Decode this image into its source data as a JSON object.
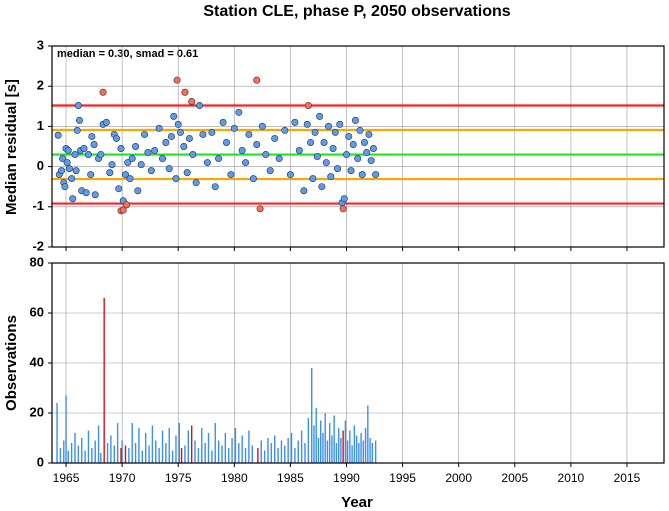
{
  "chart_data": [
    {
      "type": "scatter",
      "title": "Station CLE, phase P, 2050 observations",
      "annotation": "median = 0.30, smad = 0.61",
      "ylabel": "Median residual [s]",
      "xlim": [
        1963.75,
        2018.3
      ],
      "xticks": [
        1965,
        1970,
        1975,
        1980,
        1985,
        1990,
        1995,
        2000,
        2005,
        2010,
        2015
      ],
      "ylim": [
        -2,
        3
      ],
      "yticks": [
        -2,
        -1,
        0,
        1,
        2,
        3
      ],
      "grid": true,
      "lines": [
        {
          "value": 1.52,
          "color": "#ff2020"
        },
        {
          "value": 0.91,
          "color": "#ffa500"
        },
        {
          "value": 0.3,
          "color": "#22e022"
        },
        {
          "value": -0.31,
          "color": "#ffa500"
        },
        {
          "value": -0.92,
          "color": "#ff2020"
        }
      ],
      "series": [
        {
          "color": "#5b9bf0",
          "x": [
            1964.3,
            1964.4,
            1964.6,
            1964.7,
            1964.8,
            1964.9,
            1965.0,
            1965.1,
            1965.2,
            1965.3,
            1965.5,
            1965.6,
            1965.8,
            1965.9,
            1966.0,
            1966.1,
            1966.2,
            1966.3,
            1966.4,
            1966.6,
            1966.8,
            1967.0,
            1967.2,
            1967.3,
            1967.5,
            1967.6,
            1967.9,
            1968.1,
            1968.3,
            1968.6,
            1968.9,
            1969.1,
            1969.3,
            1969.5,
            1969.7,
            1969.9,
            1970.1,
            1970.3,
            1970.5,
            1970.7,
            1970.9,
            1971.2,
            1971.4,
            1971.7,
            1972.0,
            1972.3,
            1972.6,
            1972.9,
            1973.3,
            1973.6,
            1973.9,
            1974.2,
            1974.4,
            1974.6,
            1974.8,
            1975.0,
            1975.2,
            1975.5,
            1975.8,
            1976.0,
            1976.3,
            1976.6,
            1976.9,
            1977.2,
            1977.6,
            1978.0,
            1978.3,
            1978.6,
            1979.0,
            1979.3,
            1979.7,
            1980.0,
            1980.4,
            1980.7,
            1981.0,
            1981.3,
            1981.7,
            1982.0,
            1982.5,
            1982.8,
            1983.2,
            1983.6,
            1984.0,
            1984.5,
            1985.0,
            1985.4,
            1985.8,
            1986.2,
            1986.5,
            1986.8,
            1987.0,
            1987.2,
            1987.4,
            1987.6,
            1987.8,
            1988.0,
            1988.2,
            1988.4,
            1988.6,
            1988.8,
            1989.0,
            1989.2,
            1989.4,
            1989.6,
            1989.8,
            1990.0,
            1990.2,
            1990.4,
            1990.6,
            1990.8,
            1991.0,
            1991.2,
            1991.4,
            1991.6,
            1991.8,
            1992.0,
            1992.2,
            1992.4,
            1992.6
          ],
          "values": [
            0.78,
            -0.2,
            -0.1,
            0.2,
            -0.4,
            -0.5,
            0.45,
            0.1,
            0.4,
            -0.05,
            -0.3,
            -0.8,
            0.3,
            -0.1,
            0.9,
            1.52,
            1.15,
            0.4,
            -0.6,
            0.45,
            -0.65,
            0.3,
            -0.2,
            0.75,
            0.55,
            -0.7,
            0.2,
            0.3,
            1.05,
            1.1,
            -0.15,
            0.05,
            0.8,
            0.7,
            -0.55,
            0.45,
            -0.85,
            -0.2,
            0.1,
            -0.3,
            0.2,
            0.5,
            -0.6,
            0.05,
            0.8,
            0.35,
            -0.1,
            0.4,
            0.95,
            0.2,
            0.6,
            -0.05,
            0.75,
            1.25,
            -0.3,
            1.05,
            0.85,
            0.5,
            -0.15,
            0.7,
            0.3,
            -0.4,
            1.52,
            0.8,
            0.1,
            0.85,
            -0.5,
            0.2,
            1.1,
            0.6,
            -0.2,
            0.95,
            1.35,
            0.4,
            0.1,
            0.8,
            -0.3,
            0.55,
            1.0,
            0.3,
            -0.1,
            0.7,
            0.2,
            0.9,
            -0.2,
            1.1,
            0.4,
            -0.6,
            1.05,
            0.6,
            -0.3,
            0.85,
            0.25,
            1.25,
            -0.5,
            0.6,
            0.1,
            1.0,
            -0.25,
            0.45,
            0.85,
            -0.05,
            1.05,
            -0.9,
            -0.8,
            0.3,
            0.75,
            -0.1,
            0.55,
            1.15,
            0.2,
            0.9,
            -0.2,
            0.6,
            0.35,
            0.8,
            0.15,
            0.45,
            -0.2
          ]
        },
        {
          "color": "#ff6a5a",
          "x": [
            1968.3,
            1969.9,
            1970.1,
            1970.4,
            1974.9,
            1975.6,
            1976.2,
            1982.0,
            1982.3,
            1986.6,
            1989.7
          ],
          "values": [
            1.85,
            -1.1,
            -1.08,
            -0.95,
            2.15,
            1.85,
            1.62,
            2.15,
            -1.05,
            1.52,
            -1.05
          ]
        }
      ]
    },
    {
      "type": "bar",
      "ylabel": "Observations",
      "xlabel": "Year",
      "xlim": [
        1963.75,
        2018.3
      ],
      "xticks": [
        1965,
        1970,
        1975,
        1980,
        1985,
        1990,
        1995,
        2000,
        2005,
        2010,
        2015
      ],
      "ylim": [
        0,
        80
      ],
      "yticks": [
        0,
        20,
        40,
        60,
        80
      ],
      "grid": true,
      "series": [
        {
          "color": "#3a8ff0",
          "x": [
            1964.2,
            1964.5,
            1964.8,
            1965.0,
            1965.2,
            1965.5,
            1965.8,
            1966.1,
            1966.4,
            1966.7,
            1967.0,
            1967.3,
            1967.6,
            1967.9,
            1968.1,
            1968.7,
            1969.0,
            1969.3,
            1969.6,
            1970.0,
            1970.6,
            1970.9,
            1971.2,
            1971.5,
            1971.8,
            1972.1,
            1972.4,
            1972.7,
            1973.0,
            1973.3,
            1973.6,
            1973.9,
            1974.2,
            1974.5,
            1974.8,
            1975.1,
            1975.6,
            1975.9,
            1976.5,
            1976.8,
            1977.1,
            1977.4,
            1977.7,
            1978.0,
            1978.3,
            1978.6,
            1978.9,
            1979.2,
            1979.5,
            1979.8,
            1980.1,
            1980.4,
            1980.7,
            1981.0,
            1981.3,
            1981.6,
            1982.4,
            1982.7,
            1983.0,
            1983.3,
            1983.6,
            1983.9,
            1984.2,
            1984.5,
            1984.8,
            1985.1,
            1985.4,
            1985.7,
            1986.0,
            1986.3,
            1986.6,
            1986.9,
            1987.1,
            1987.3,
            1987.5,
            1987.7,
            1987.9,
            1988.1,
            1988.3,
            1988.5,
            1988.7,
            1988.9,
            1989.1,
            1989.3,
            1989.5,
            1989.9,
            1990.1,
            1990.3,
            1990.5,
            1990.7,
            1990.9,
            1991.1,
            1991.3,
            1991.5,
            1991.7,
            1991.9,
            1992.1,
            1992.3,
            1992.6
          ],
          "values": [
            24,
            6,
            9,
            27,
            5,
            8,
            12,
            7,
            10,
            5,
            13,
            6,
            9,
            15,
            4,
            8,
            11,
            7,
            16,
            9,
            6,
            16,
            8,
            14,
            5,
            12,
            7,
            15,
            9,
            6,
            13,
            8,
            14,
            5,
            11,
            16,
            7,
            13,
            9,
            6,
            14,
            8,
            12,
            5,
            16,
            9,
            7,
            12,
            6,
            10,
            14,
            8,
            11,
            6,
            13,
            7,
            9,
            5,
            10,
            8,
            11,
            6,
            9,
            7,
            10,
            12,
            6,
            9,
            13,
            8,
            18,
            38,
            15,
            22,
            10,
            17,
            12,
            20,
            9,
            16,
            11,
            19,
            8,
            14,
            10,
            17,
            9,
            13,
            7,
            15,
            11,
            8,
            12,
            9,
            14,
            23,
            10,
            8,
            9
          ]
        },
        {
          "color": "#dd1010",
          "x": [
            1968.4,
            1969.9,
            1970.3,
            1975.3,
            1976.2,
            1982.1,
            1989.7
          ],
          "values": [
            66,
            6,
            7,
            6,
            15,
            6,
            13
          ]
        }
      ]
    }
  ]
}
